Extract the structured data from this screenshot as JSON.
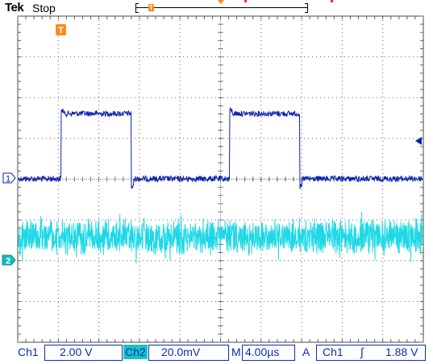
{
  "header": {
    "brand": "Tek",
    "acquisition_state": "Stop",
    "trigger_marker_glyph": "T",
    "record_marker_glyph": "T"
  },
  "channel_markers": {
    "ch1_glyph": "1",
    "ch2_glyph": "2",
    "trigger_level_glyph": "◀"
  },
  "status": {
    "ch1_label": "Ch1",
    "ch1_scale": "2.00 V",
    "ch2_label": "Ch2",
    "ch2_scale": "20.0mV",
    "timebase_label": "M",
    "timebase": "4.00µs",
    "trigger_mode": "A",
    "trigger_source": "Ch1",
    "trigger_slope_icon": "rising-edge-icon",
    "trigger_slope_glyph": "∫",
    "trigger_level": "1.88 V"
  },
  "colors": {
    "ch1": "#0b1fb0",
    "ch2": "#1fd8e6",
    "accent": "#ff8a1c",
    "grid": "#606060",
    "text": "#0b2bb8"
  }
}
